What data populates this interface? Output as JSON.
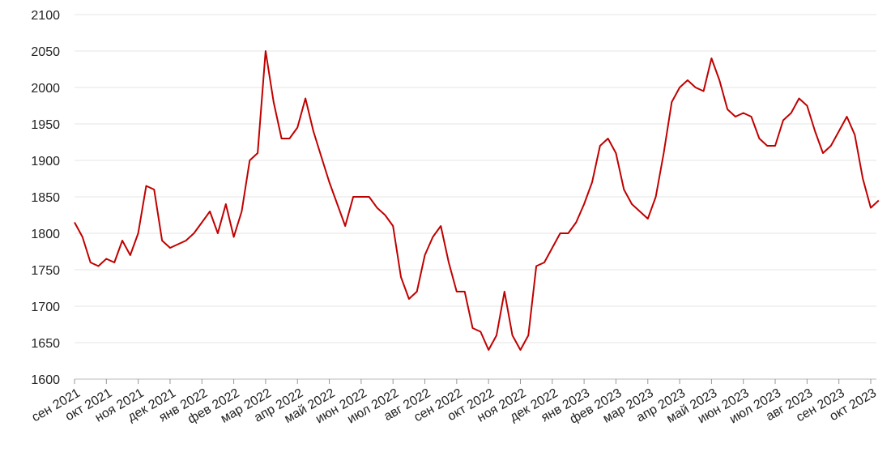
{
  "chart_data": {
    "type": "line",
    "categories": [
      "сен 2021",
      null,
      null,
      null,
      "окт 2021",
      null,
      null,
      null,
      "ноя 2021",
      null,
      null,
      null,
      "дек 2021",
      null,
      null,
      null,
      "янв 2022",
      null,
      null,
      null,
      "фев 2022",
      null,
      null,
      null,
      "мар 2022",
      null,
      null,
      null,
      "апр 2022",
      null,
      null,
      null,
      "май 2022",
      null,
      null,
      null,
      "июн 2022",
      null,
      null,
      null,
      "июл 2022",
      null,
      null,
      null,
      "авг 2022",
      null,
      null,
      null,
      "сен 2022",
      null,
      null,
      null,
      "окт 2022",
      null,
      null,
      null,
      "ноя 2022",
      null,
      null,
      null,
      "дек 2022",
      null,
      null,
      null,
      "янв 2023",
      null,
      null,
      null,
      "фев 2023",
      null,
      null,
      null,
      "мар 2023",
      null,
      null,
      null,
      "апр 2023",
      null,
      null,
      null,
      "май 2023",
      null,
      null,
      null,
      "июн 2023",
      null,
      null,
      null,
      "июл 2023",
      null,
      null,
      null,
      "авг 2023",
      null,
      null,
      null,
      "сен 2023",
      null,
      null,
      null,
      "окт 2023",
      null
    ],
    "series": [
      {
        "color": "#c00000",
        "values": [
          1815,
          1795,
          1760,
          1755,
          1765,
          1760,
          1790,
          1770,
          1800,
          1865,
          1860,
          1790,
          1780,
          1785,
          1790,
          1800,
          1815,
          1830,
          1800,
          1840,
          1795,
          1830,
          1900,
          1910,
          2050,
          1980,
          1930,
          1930,
          1945,
          1985,
          1940,
          1905,
          1870,
          1840,
          1810,
          1850,
          1850,
          1850,
          1835,
          1825,
          1810,
          1740,
          1710,
          1720,
          1770,
          1795,
          1810,
          1760,
          1720,
          1720,
          1670,
          1665,
          1640,
          1660,
          1720,
          1660,
          1640,
          1660,
          1755,
          1760,
          1780,
          1800,
          1800,
          1815,
          1840,
          1870,
          1920,
          1930,
          1910,
          1860,
          1840,
          1830,
          1820,
          1850,
          1910,
          1980,
          2000,
          2010,
          2000,
          1995,
          2040,
          2010,
          1970,
          1960,
          1965,
          1960,
          1930,
          1920,
          1920,
          1955,
          1965,
          1985,
          1975,
          1940,
          1910,
          1920,
          1940,
          1960,
          1935,
          1875,
          1835,
          1845
        ]
      }
    ],
    "ylim": [
      1600,
      2100
    ],
    "yticks": [
      1600,
      1650,
      1700,
      1750,
      1800,
      1850,
      1900,
      1950,
      2000,
      2050,
      2100
    ],
    "grid": true
  }
}
